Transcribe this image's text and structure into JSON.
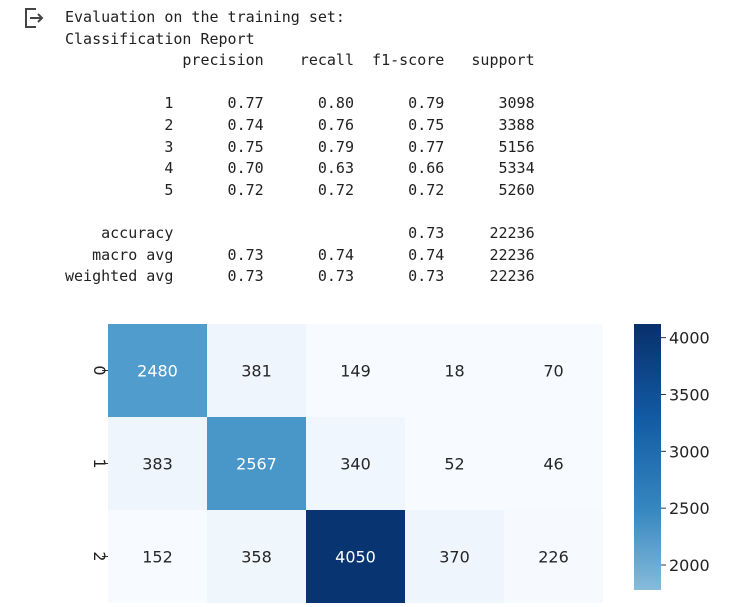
{
  "output": {
    "icon": "output-redirect-icon",
    "title_line": "Evaluation on the training set:",
    "report_title": "Classification Report",
    "report_header": [
      "precision",
      "recall",
      "f1-score",
      "support"
    ],
    "report_rows": [
      {
        "label": "1",
        "precision": "0.77",
        "recall": "0.80",
        "f1": "0.79",
        "support": "3098"
      },
      {
        "label": "2",
        "precision": "0.74",
        "recall": "0.76",
        "f1": "0.75",
        "support": "3388"
      },
      {
        "label": "3",
        "precision": "0.75",
        "recall": "0.79",
        "f1": "0.77",
        "support": "5156"
      },
      {
        "label": "4",
        "precision": "0.70",
        "recall": "0.63",
        "f1": "0.66",
        "support": "5334"
      },
      {
        "label": "5",
        "precision": "0.72",
        "recall": "0.72",
        "f1": "0.72",
        "support": "5260"
      }
    ],
    "report_summary": [
      {
        "label": "accuracy",
        "precision": "",
        "recall": "",
        "f1": "0.73",
        "support": "22236"
      },
      {
        "label": "macro avg",
        "precision": "0.73",
        "recall": "0.74",
        "f1": "0.74",
        "support": "22236"
      },
      {
        "label": "weighted avg",
        "precision": "0.73",
        "recall": "0.73",
        "f1": "0.73",
        "support": "22236"
      }
    ]
  },
  "chart_data": {
    "type": "heatmap",
    "row_labels": [
      "0",
      "1",
      "2"
    ],
    "values": [
      [
        2480,
        381,
        149,
        18,
        70
      ],
      [
        383,
        2567,
        340,
        52,
        46
      ],
      [
        152,
        358,
        4050,
        370,
        226
      ]
    ],
    "colorbar_ticks": [
      2000,
      2500,
      3000,
      3500,
      4000
    ],
    "colorbar_range": [
      1780,
      4120
    ],
    "colormap": "Blues"
  }
}
